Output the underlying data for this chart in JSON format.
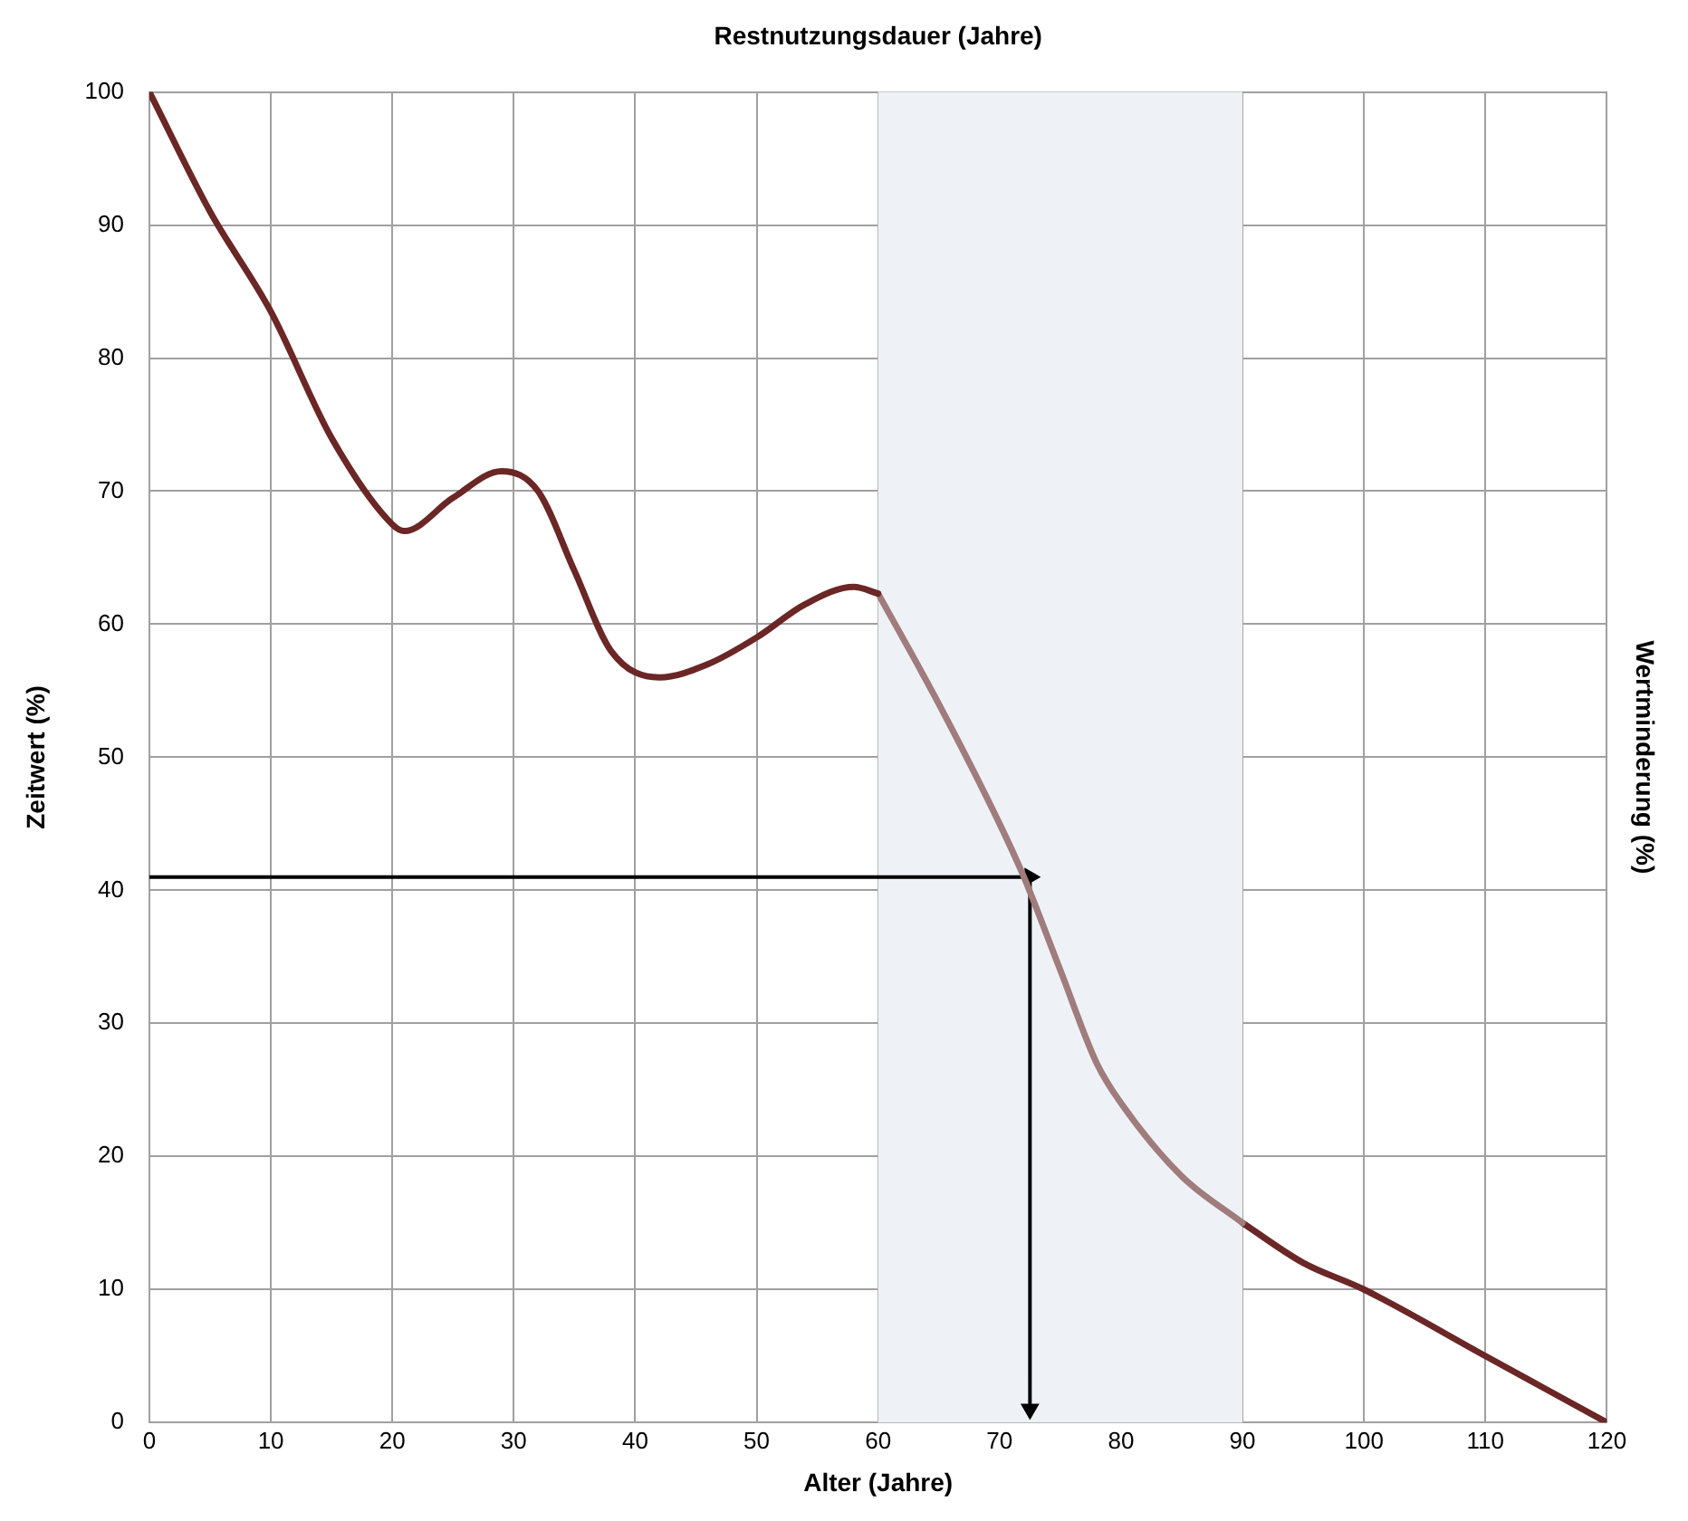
{
  "chart_data": {
    "type": "line",
    "xlabel": "Alter (Jahre)",
    "ylabel": "Zeitwert (%)",
    "x2label": "Restnutzungsdauer (Jahre)",
    "y2label": "Wertminderung (%)",
    "xlim": [
      0,
      120
    ],
    "xticks": [
      0,
      10,
      20,
      30,
      40,
      50,
      60,
      70,
      80,
      90,
      100,
      110,
      120
    ],
    "ylim": [
      0,
      100
    ],
    "yticks": [
      0,
      10,
      20,
      30,
      40,
      50,
      60,
      70,
      80,
      90,
      100
    ],
    "grid": true,
    "bands": [
      {
        "axis": "x",
        "from": 60,
        "to": 90,
        "color": "#eef2f7"
      }
    ],
    "series": [
      {
        "color": "#6b2626",
        "x": [
          0,
          5,
          10,
          15,
          20,
          21,
          25,
          29,
          32,
          35,
          38,
          42,
          46,
          50,
          54,
          58,
          60
        ],
        "values": [
          100,
          91,
          83.5,
          74,
          67.5,
          67,
          69.5,
          71.5,
          70,
          64,
          58,
          56,
          57,
          59,
          61.5,
          62.8,
          62.3
        ]
      },
      {
        "color": "#a07c7c",
        "x": [
          60,
          65,
          70,
          72,
          75,
          78,
          80,
          85,
          90
        ],
        "values": [
          62.3,
          54,
          45,
          41,
          34,
          27,
          24,
          18.5,
          15
        ]
      },
      {
        "color": "#6b2626",
        "x": [
          90,
          95,
          100,
          110,
          120
        ],
        "values": [
          15,
          12,
          10,
          5,
          0
        ]
      },
      {
        "color": "#000000",
        "marker": "triangle",
        "x": [
          0,
          72.5,
          72.5
        ],
        "values": [
          41,
          41,
          1
        ]
      }
    ]
  }
}
